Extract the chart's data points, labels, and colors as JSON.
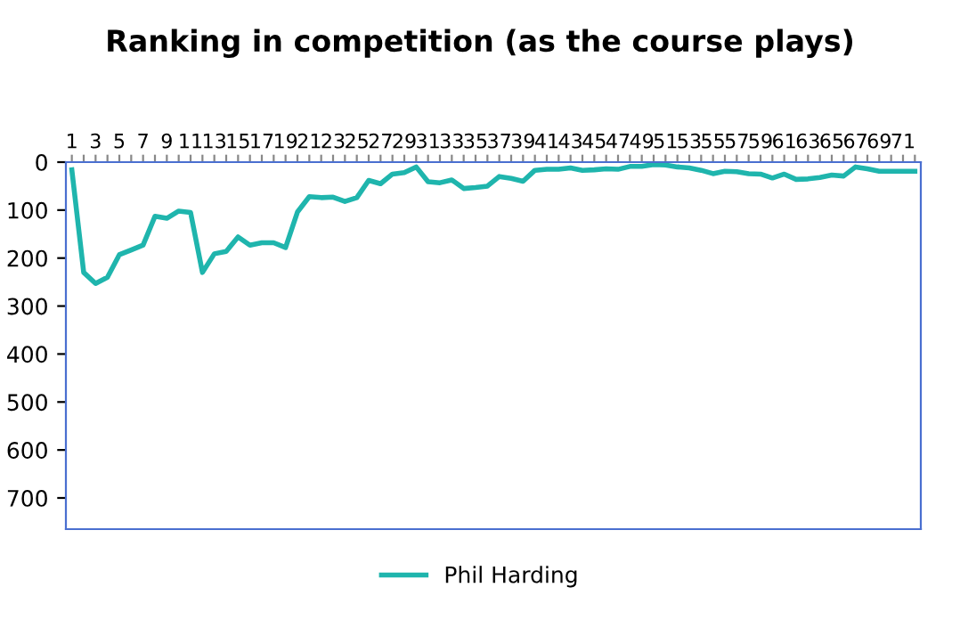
{
  "chart_data": {
    "type": "line",
    "title": "Ranking in competition (as the course plays)",
    "categories": [
      "1",
      null,
      "3",
      null,
      "5",
      null,
      "7",
      null,
      "9",
      null,
      "11",
      null,
      "13",
      null,
      "15",
      null,
      "17",
      null,
      "19",
      null,
      "21",
      null,
      "23",
      null,
      "25",
      null,
      "27",
      null,
      "29",
      null,
      "31",
      null,
      "33",
      null,
      "35",
      null,
      "37",
      null,
      "39",
      null,
      "41",
      null,
      "43",
      null,
      "45",
      null,
      "47",
      null,
      "49",
      null,
      "51",
      null,
      "53",
      null,
      "55",
      null,
      "57",
      null,
      "59",
      null,
      "61",
      null,
      "63",
      null,
      "65",
      null,
      "67",
      null,
      "69",
      null,
      "71",
      null
    ],
    "series": [
      {
        "name": "Phil Harding",
        "color": "#1fb5ad",
        "values": [
          16,
          230,
          253,
          240,
          193,
          183,
          173,
          113,
          117,
          102,
          105,
          230,
          191,
          186,
          156,
          173,
          168,
          168,
          178,
          104,
          72,
          74,
          73,
          82,
          74,
          38,
          45,
          25,
          22,
          10,
          41,
          43,
          37,
          55,
          53,
          50,
          30,
          34,
          40,
          17,
          15,
          15,
          12,
          17,
          16,
          14,
          15,
          9,
          9,
          5,
          6,
          10,
          12,
          17,
          24,
          19,
          20,
          24,
          25,
          33,
          25,
          36,
          35,
          32,
          27,
          29,
          10,
          14,
          19,
          19,
          19,
          19
        ]
      }
    ],
    "ylim": [
      765,
      0
    ],
    "yticks": [
      0,
      100,
      200,
      300,
      400,
      500,
      600,
      700
    ],
    "grid": false,
    "legend": "bottom",
    "marker": "none",
    "line_style": "solid"
  }
}
